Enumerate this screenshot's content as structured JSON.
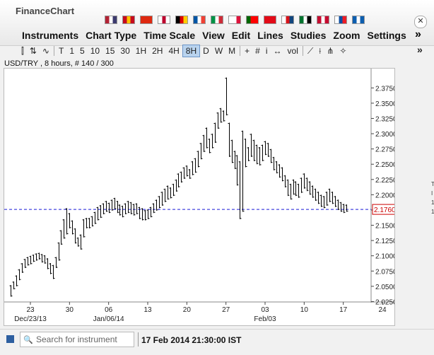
{
  "app": {
    "title": "FinanceChart"
  },
  "menu": [
    "Instruments",
    "Chart Type",
    "Time Scale",
    "View",
    "Edit",
    "Lines",
    "Studies",
    "Zoom",
    "Settings"
  ],
  "menu_more": "»",
  "flags": [
    {
      "icon": "flag-usa-icon",
      "colors": [
        "#b22234",
        "#ffffff",
        "#3c3b6e"
      ]
    },
    {
      "icon": "flag-spain-icon",
      "colors": [
        "#c60b1e",
        "#ffc400",
        "#c60b1e"
      ]
    },
    {
      "icon": "flag-china-icon",
      "colors": [
        "#de2910",
        "#de2910",
        "#de2910"
      ]
    },
    {
      "icon": "flag-japan-icon",
      "colors": [
        "#ffffff",
        "#bc002d",
        "#ffffff"
      ]
    },
    {
      "icon": "flag-germany-icon",
      "colors": [
        "#000000",
        "#dd0000",
        "#ffce00"
      ]
    },
    {
      "icon": "flag-france-icon",
      "colors": [
        "#0055a4",
        "#ffffff",
        "#ef4135"
      ]
    },
    {
      "icon": "flag-italy-icon",
      "colors": [
        "#009246",
        "#ffffff",
        "#ce2b37"
      ]
    },
    {
      "icon": "flag-poland-icon",
      "colors": [
        "#ffffff",
        "#ffffff",
        "#dc143c"
      ]
    },
    {
      "icon": "flag-portugal-icon",
      "colors": [
        "#006600",
        "#ff0000",
        "#ff0000"
      ]
    },
    {
      "icon": "flag-turkey-icon",
      "colors": [
        "#e30a17",
        "#e30a17",
        "#e30a17"
      ]
    },
    {
      "icon": "flag-czech-icon",
      "colors": [
        "#ffffff",
        "#d7141a",
        "#11457e"
      ]
    },
    {
      "icon": "flag-uae-icon",
      "colors": [
        "#00732f",
        "#ffffff",
        "#000000"
      ]
    },
    {
      "icon": "flag-denmark-icon",
      "colors": [
        "#c60c30",
        "#ffffff",
        "#c60c30"
      ]
    },
    {
      "icon": "flag-slovakia-icon",
      "colors": [
        "#ffffff",
        "#0b4ea2",
        "#ee1c25"
      ]
    },
    {
      "icon": "flag-greece-icon",
      "colors": [
        "#0d5eaf",
        "#ffffff",
        "#0d5eaf"
      ]
    }
  ],
  "toolbar": {
    "chart_types": [
      {
        "name": "candle-icon",
        "glyph": "⫿"
      },
      {
        "name": "ohlc-icon",
        "glyph": "⇅"
      },
      {
        "name": "line-icon",
        "glyph": "∿"
      }
    ],
    "timescales": [
      "T",
      "1",
      "5",
      "10",
      "15",
      "30",
      "1H",
      "2H",
      "4H",
      "8H",
      "D",
      "W",
      "M"
    ],
    "active_timescale": "8H",
    "tools": [
      {
        "name": "crosshair-icon",
        "glyph": "+"
      },
      {
        "name": "grid-icon",
        "glyph": "#"
      },
      {
        "name": "info-icon",
        "glyph": "i"
      },
      {
        "name": "scroll-icon",
        "glyph": "↔"
      },
      {
        "name": "volume-icon",
        "glyph": "vol"
      },
      {
        "name": "trendline-icon",
        "glyph": "⟋"
      },
      {
        "name": "fibonacci-icon",
        "glyph": "⟊"
      },
      {
        "name": "pitchfork-icon",
        "glyph": "⋔"
      },
      {
        "name": "pin-icon",
        "glyph": "✧"
      }
    ],
    "more": "»"
  },
  "chart_header": "USD/TRY , 8 hours, # 140 / 300",
  "chart_data": {
    "type": "ohlc",
    "instrument": "USD/TRY",
    "timeframe": "8 hours",
    "ylim": [
      2.02,
      2.39
    ],
    "y_ticks": [
      2.025,
      2.05,
      2.075,
      2.1,
      2.125,
      2.15,
      2.175,
      2.2,
      2.225,
      2.25,
      2.275,
      2.3,
      2.325,
      2.35,
      2.375
    ],
    "x_ticks": [
      "23",
      "30",
      "06",
      "13",
      "20",
      "27",
      "03",
      "10",
      "17",
      "24"
    ],
    "x_tick_days": [
      23,
      30,
      37,
      44,
      51,
      58,
      65,
      72,
      79,
      86
    ],
    "period_labels": [
      {
        "label": "Dec/23/13",
        "day": 23
      },
      {
        "label": "Jan/06/14",
        "day": 37
      },
      {
        "label": "Feb/03",
        "day": 65
      }
    ],
    "last_price": 2.176,
    "last_price_label": "2.1760",
    "bars": [
      [
        19.5,
        2.052,
        2.033
      ],
      [
        20.0,
        2.058,
        2.045
      ],
      [
        20.5,
        2.068,
        2.05
      ],
      [
        21.0,
        2.078,
        2.06
      ],
      [
        21.5,
        2.088,
        2.072
      ],
      [
        22.0,
        2.095,
        2.08
      ],
      [
        22.5,
        2.098,
        2.084
      ],
      [
        23.0,
        2.1,
        2.086
      ],
      [
        23.5,
        2.102,
        2.09
      ],
      [
        24.0,
        2.104,
        2.092
      ],
      [
        24.5,
        2.105,
        2.094
      ],
      [
        25.0,
        2.103,
        2.089
      ],
      [
        25.5,
        2.101,
        2.087
      ],
      [
        26.0,
        2.096,
        2.078
      ],
      [
        26.5,
        2.088,
        2.07
      ],
      [
        27.0,
        2.085,
        2.062
      ],
      [
        27.5,
        2.098,
        2.08
      ],
      [
        28.0,
        2.122,
        2.092
      ],
      [
        28.5,
        2.142,
        2.118
      ],
      [
        29.0,
        2.16,
        2.128
      ],
      [
        29.5,
        2.178,
        2.135
      ],
      [
        30.0,
        2.17,
        2.145
      ],
      [
        30.5,
        2.158,
        2.135
      ],
      [
        31.0,
        2.145,
        2.12
      ],
      [
        31.5,
        2.13,
        2.115
      ],
      [
        32.0,
        2.135,
        2.11
      ],
      [
        32.5,
        2.16,
        2.13
      ],
      [
        33.0,
        2.162,
        2.145
      ],
      [
        33.5,
        2.162,
        2.145
      ],
      [
        34.0,
        2.165,
        2.148
      ],
      [
        34.5,
        2.172,
        2.152
      ],
      [
        35.0,
        2.18,
        2.158
      ],
      [
        35.5,
        2.183,
        2.162
      ],
      [
        36.0,
        2.186,
        2.168
      ],
      [
        36.5,
        2.19,
        2.172
      ],
      [
        37.0,
        2.187,
        2.17
      ],
      [
        37.5,
        2.192,
        2.174
      ],
      [
        38.0,
        2.195,
        2.176
      ],
      [
        38.5,
        2.19,
        2.17
      ],
      [
        39.0,
        2.184,
        2.166
      ],
      [
        39.5,
        2.182,
        2.163
      ],
      [
        40.0,
        2.186,
        2.168
      ],
      [
        40.5,
        2.19,
        2.17
      ],
      [
        41.0,
        2.188,
        2.168
      ],
      [
        41.5,
        2.185,
        2.166
      ],
      [
        42.0,
        2.186,
        2.168
      ],
      [
        42.5,
        2.18,
        2.16
      ],
      [
        43.0,
        2.178,
        2.158
      ],
      [
        43.5,
        2.175,
        2.158
      ],
      [
        44.0,
        2.176,
        2.16
      ],
      [
        44.5,
        2.18,
        2.163
      ],
      [
        45.0,
        2.186,
        2.17
      ],
      [
        45.5,
        2.192,
        2.174
      ],
      [
        46.0,
        2.198,
        2.178
      ],
      [
        46.5,
        2.205,
        2.182
      ],
      [
        47.0,
        2.21,
        2.188
      ],
      [
        47.5,
        2.215,
        2.192
      ],
      [
        48.0,
        2.212,
        2.194
      ],
      [
        48.5,
        2.218,
        2.198
      ],
      [
        49.0,
        2.225,
        2.205
      ],
      [
        49.5,
        2.235,
        2.212
      ],
      [
        50.0,
        2.238,
        2.22
      ],
      [
        50.5,
        2.245,
        2.226
      ],
      [
        51.0,
        2.248,
        2.23
      ],
      [
        51.5,
        2.242,
        2.226
      ],
      [
        52.0,
        2.255,
        2.232
      ],
      [
        52.5,
        2.26,
        2.236
      ],
      [
        53.0,
        2.272,
        2.245
      ],
      [
        53.5,
        2.285,
        2.258
      ],
      [
        54.0,
        2.298,
        2.27
      ],
      [
        54.5,
        2.31,
        2.276
      ],
      [
        55.0,
        2.292,
        2.268
      ],
      [
        55.5,
        2.3,
        2.276
      ],
      [
        56.0,
        2.318,
        2.285
      ],
      [
        56.5,
        2.335,
        2.308
      ],
      [
        57.0,
        2.342,
        2.318
      ],
      [
        57.5,
        2.338,
        2.32
      ],
      [
        58.0,
        2.392,
        2.33
      ],
      [
        58.5,
        2.318,
        2.262
      ],
      [
        59.0,
        2.29,
        2.252
      ],
      [
        59.5,
        2.272,
        2.242
      ],
      [
        60.0,
        2.265,
        2.215
      ],
      [
        60.5,
        2.255,
        2.16
      ],
      [
        61.0,
        2.305,
        2.172
      ],
      [
        61.5,
        2.292,
        2.245
      ],
      [
        62.0,
        2.278,
        2.255
      ],
      [
        62.5,
        2.3,
        2.262
      ],
      [
        63.0,
        2.29,
        2.255
      ],
      [
        63.5,
        2.282,
        2.25
      ],
      [
        64.0,
        2.278,
        2.248
      ],
      [
        64.5,
        2.282,
        2.255
      ],
      [
        65.0,
        2.288,
        2.265
      ],
      [
        65.5,
        2.285,
        2.262
      ],
      [
        66.0,
        2.275,
        2.252
      ],
      [
        66.5,
        2.262,
        2.24
      ],
      [
        67.0,
        2.255,
        2.235
      ],
      [
        67.5,
        2.25,
        2.228
      ],
      [
        68.0,
        2.245,
        2.222
      ],
      [
        68.5,
        2.232,
        2.212
      ],
      [
        69.0,
        2.225,
        2.198
      ],
      [
        69.5,
        2.218,
        2.192
      ],
      [
        70.0,
        2.225,
        2.2
      ],
      [
        70.5,
        2.222,
        2.198
      ],
      [
        71.0,
        2.218,
        2.195
      ],
      [
        71.5,
        2.228,
        2.203
      ],
      [
        72.0,
        2.235,
        2.21
      ],
      [
        72.5,
        2.228,
        2.206
      ],
      [
        73.0,
        2.222,
        2.2
      ],
      [
        73.5,
        2.215,
        2.195
      ],
      [
        74.0,
        2.21,
        2.19
      ],
      [
        74.5,
        2.205,
        2.185
      ],
      [
        75.0,
        2.2,
        2.18
      ],
      [
        75.5,
        2.198,
        2.178
      ],
      [
        76.0,
        2.205,
        2.182
      ],
      [
        76.5,
        2.21,
        2.188
      ],
      [
        77.0,
        2.205,
        2.185
      ],
      [
        77.5,
        2.198,
        2.18
      ],
      [
        78.0,
        2.192,
        2.175
      ],
      [
        78.5,
        2.188,
        2.172
      ],
      [
        79.0,
        2.185,
        2.17
      ],
      [
        79.5,
        2.184,
        2.172
      ]
    ]
  },
  "bottom": {
    "search_placeholder": "Search for instrument",
    "datetime": "17 Feb 2014 21:30:00 IST"
  },
  "side_fragments": [
    "T",
    "I",
    "1",
    "1"
  ]
}
